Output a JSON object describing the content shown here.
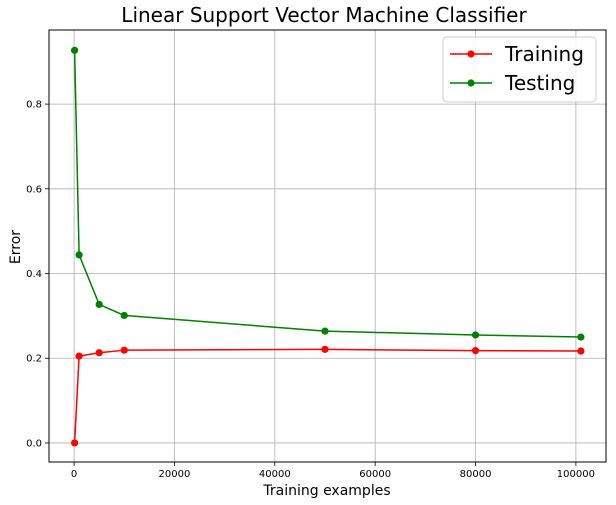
{
  "chart_data": {
    "type": "line",
    "title": "Linear Support Vector Machine Classifier",
    "xlabel": "Training examples",
    "ylabel": "Error",
    "xlim": [
      -5000,
      106000
    ],
    "ylim": [
      -0.045,
      0.975
    ],
    "xticks": [
      0,
      20000,
      40000,
      60000,
      80000,
      100000
    ],
    "yticks": [
      0.0,
      0.2,
      0.4,
      0.6,
      0.8
    ],
    "xtick_labels": [
      "0",
      "20000",
      "40000",
      "60000",
      "80000",
      "100000"
    ],
    "ytick_labels": [
      "0.0",
      "0.2",
      "0.4",
      "0.6",
      "0.8"
    ],
    "grid": true,
    "legend_position": "top-right",
    "series": [
      {
        "name": "Training",
        "color": "#ff0000",
        "x": [
          100,
          1000,
          5000,
          10000,
          50000,
          80000,
          101000
        ],
        "y": [
          0.0,
          0.205,
          0.213,
          0.219,
          0.221,
          0.218,
          0.217
        ]
      },
      {
        "name": "Testing",
        "color": "#008000",
        "x": [
          100,
          1000,
          5000,
          10000,
          50000,
          80000,
          101000
        ],
        "y": [
          0.927,
          0.444,
          0.327,
          0.301,
          0.264,
          0.255,
          0.25
        ]
      }
    ]
  }
}
